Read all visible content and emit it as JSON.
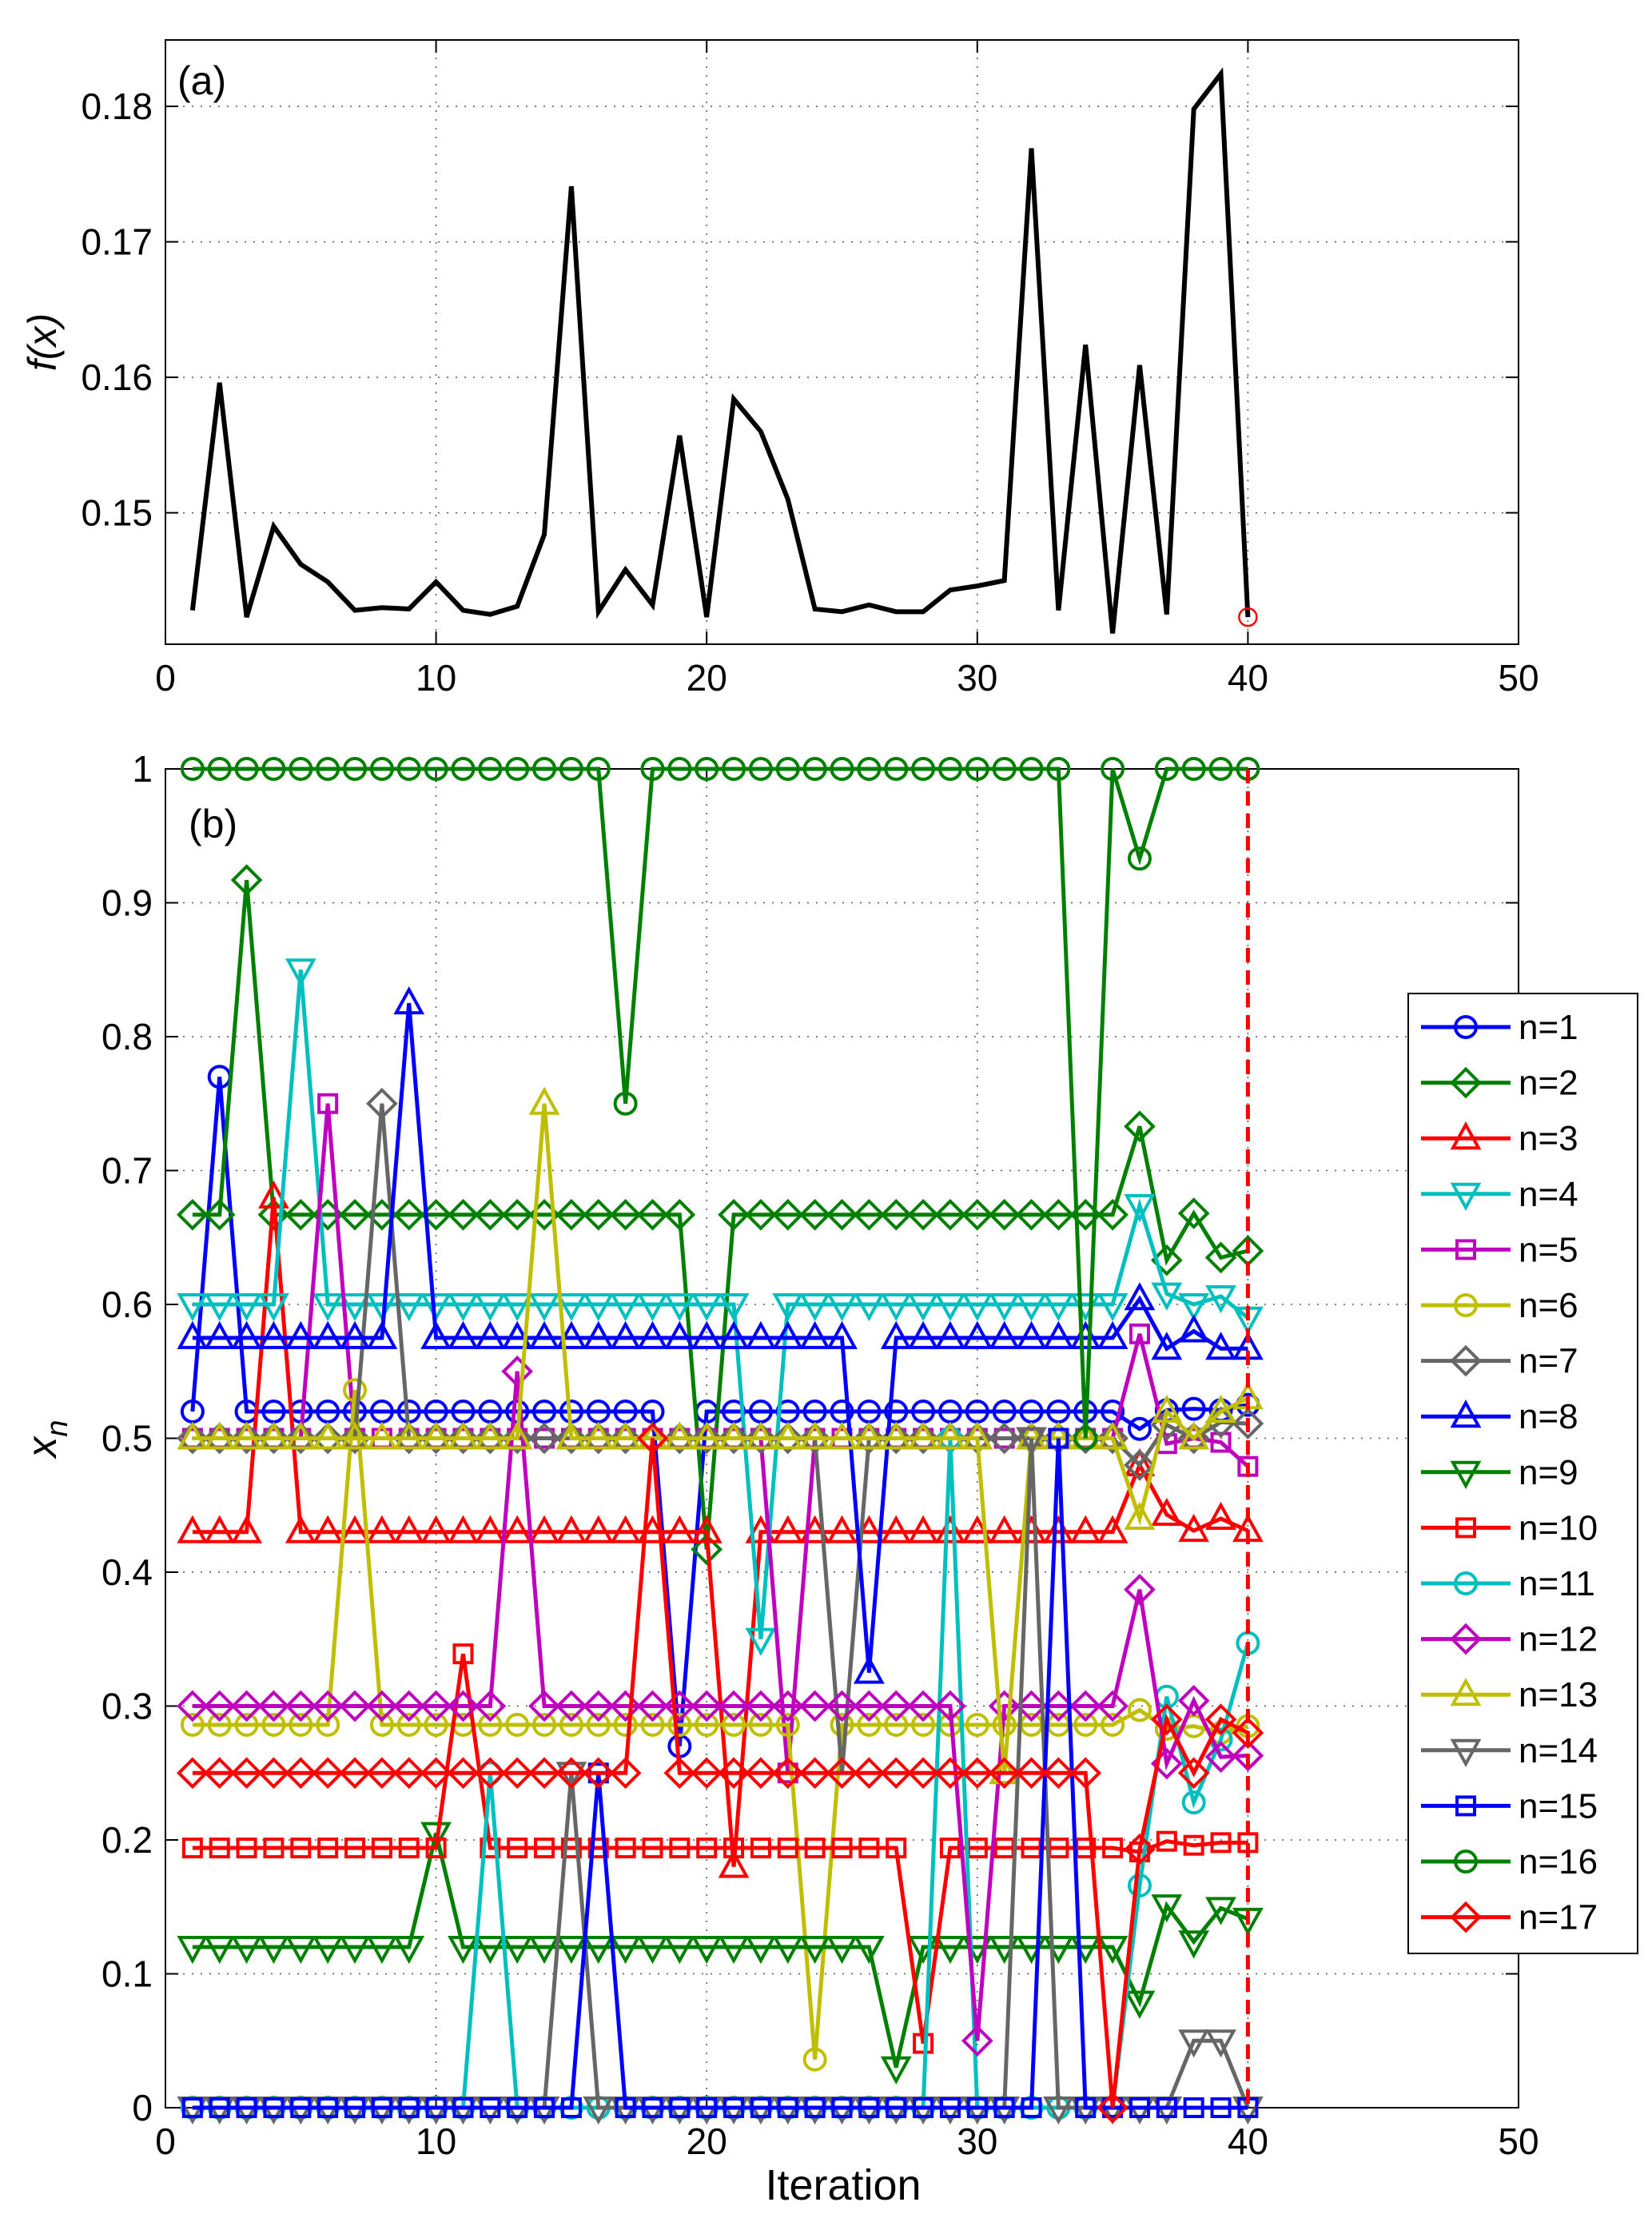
{
  "chart_data": [
    {
      "type": "line",
      "panel_label": "(a)",
      "title": "",
      "xlabel": "",
      "ylabel": "f(x)",
      "xlim": [
        0,
        50
      ],
      "ylim": [
        0.1403,
        0.1849
      ],
      "xticks": [
        0,
        10,
        20,
        30,
        40,
        50
      ],
      "yticks": [
        0.15,
        0.16,
        0.17,
        0.18
      ],
      "grid": true,
      "x": [
        1,
        2,
        3,
        4,
        5,
        6,
        7,
        8,
        9,
        10,
        11,
        12,
        13,
        14,
        15,
        16,
        17,
        18,
        19,
        20,
        21,
        22,
        23,
        24,
        25,
        26,
        27,
        28,
        29,
        30,
        31,
        32,
        33,
        34,
        35,
        36,
        37,
        38,
        39,
        40
      ],
      "series": [
        {
          "name": "f(x)",
          "color": "#000000",
          "values": [
            0.1428,
            0.1596,
            0.1423,
            0.149,
            0.1462,
            0.1449,
            0.1428,
            0.143,
            0.1429,
            0.1449,
            0.1428,
            0.1425,
            0.1431,
            0.1484,
            0.1741,
            0.1427,
            0.1458,
            0.1432,
            0.1557,
            0.1423,
            0.1584,
            0.156,
            0.151,
            0.1429,
            0.1427,
            0.1432,
            0.1427,
            0.1427,
            0.1443,
            0.1446,
            0.145,
            0.1769,
            0.1428,
            0.1624,
            0.1411,
            0.1609,
            0.1425,
            0.1798,
            0.1824,
            0.1423
          ]
        }
      ],
      "highlight_point": {
        "x": 40,
        "y": 0.1423,
        "color": "#ff0000",
        "marker": "circle"
      }
    },
    {
      "type": "line",
      "panel_label": "(b)",
      "title": "",
      "xlabel": "Iteration",
      "ylabel": "x",
      "ylabel_subscript": "n",
      "xlim": [
        0,
        50
      ],
      "ylim": [
        0,
        1
      ],
      "xticks": [
        0,
        10,
        20,
        30,
        40,
        50
      ],
      "yticks": [
        0,
        0.1,
        0.2,
        0.3,
        0.4,
        0.5,
        0.6,
        0.7,
        0.8,
        0.9,
        1
      ],
      "ytick_labels": [
        "0",
        "0.1",
        "0.2",
        "0.3",
        "0.4",
        "0.5",
        "0.6",
        "0.7",
        "0.8",
        "0.9",
        "1"
      ],
      "grid": true,
      "legend_position": "right",
      "vertical_marker": {
        "x": 40,
        "color": "#ff0000",
        "style": "dashed"
      },
      "x": [
        1,
        2,
        3,
        4,
        5,
        6,
        7,
        8,
        9,
        10,
        11,
        12,
        13,
        14,
        15,
        16,
        17,
        18,
        19,
        20,
        21,
        22,
        23,
        24,
        25,
        26,
        27,
        28,
        29,
        30,
        31,
        32,
        33,
        34,
        35,
        36,
        37,
        38,
        39,
        40
      ],
      "series": [
        {
          "name": "n=1",
          "color": "#0000ff",
          "marker": "circle",
          "values": [
            0.52,
            0.77,
            0.52,
            0.52,
            0.52,
            0.52,
            0.52,
            0.52,
            0.52,
            0.52,
            0.52,
            0.52,
            0.52,
            0.52,
            0.52,
            0.52,
            0.52,
            0.52,
            0.27,
            0.52,
            0.52,
            0.52,
            0.52,
            0.52,
            0.52,
            0.52,
            0.52,
            0.52,
            0.52,
            0.52,
            0.52,
            0.52,
            0.52,
            0.52,
            0.52,
            0.507,
            0.521,
            0.522,
            0.521,
            0.525
          ]
        },
        {
          "name": "n=2",
          "color": "#008000",
          "marker": "diamond",
          "values": [
            0.667,
            0.667,
            0.917,
            0.667,
            0.667,
            0.667,
            0.667,
            0.667,
            0.667,
            0.667,
            0.667,
            0.667,
            0.667,
            0.667,
            0.667,
            0.667,
            0.667,
            0.667,
            0.667,
            0.417,
            0.667,
            0.667,
            0.667,
            0.667,
            0.667,
            0.667,
            0.667,
            0.667,
            0.667,
            0.667,
            0.667,
            0.667,
            0.667,
            0.667,
            0.667,
            0.733,
            0.633,
            0.668,
            0.635,
            0.64
          ]
        },
        {
          "name": "n=3",
          "color": "#ff0000",
          "marker": "triangle-up",
          "values": [
            0.43,
            0.43,
            0.43,
            0.68,
            0.43,
            0.43,
            0.43,
            0.43,
            0.43,
            0.43,
            0.43,
            0.43,
            0.43,
            0.43,
            0.43,
            0.43,
            0.43,
            0.43,
            0.43,
            0.43,
            0.18,
            0.43,
            0.43,
            0.43,
            0.43,
            0.43,
            0.43,
            0.43,
            0.43,
            0.43,
            0.43,
            0.43,
            0.43,
            0.43,
            0.43,
            0.48,
            0.443,
            0.431,
            0.44,
            0.431
          ]
        },
        {
          "name": "n=4",
          "color": "#00bfbf",
          "marker": "triangle-down",
          "values": [
            0.6,
            0.6,
            0.6,
            0.6,
            0.85,
            0.6,
            0.6,
            0.6,
            0.6,
            0.6,
            0.6,
            0.6,
            0.6,
            0.6,
            0.6,
            0.6,
            0.6,
            0.6,
            0.6,
            0.6,
            0.6,
            0.35,
            0.6,
            0.6,
            0.6,
            0.6,
            0.6,
            0.6,
            0.6,
            0.6,
            0.6,
            0.6,
            0.6,
            0.6,
            0.6,
            0.674,
            0.608,
            0.6,
            0.606,
            0.59
          ]
        },
        {
          "name": "n=5",
          "color": "#bf00bf",
          "marker": "square",
          "values": [
            0.5,
            0.5,
            0.5,
            0.5,
            0.5,
            0.75,
            0.5,
            0.5,
            0.5,
            0.5,
            0.5,
            0.5,
            0.5,
            0.5,
            0.5,
            0.5,
            0.5,
            0.5,
            0.5,
            0.5,
            0.5,
            0.5,
            0.25,
            0.5,
            0.5,
            0.5,
            0.5,
            0.5,
            0.5,
            0.5,
            0.5,
            0.5,
            0.5,
            0.5,
            0.5,
            0.578,
            0.496,
            0.5,
            0.497,
            0.479
          ]
        },
        {
          "name": "n=6",
          "color": "#bfbf00",
          "marker": "circle",
          "values": [
            0.286,
            0.286,
            0.286,
            0.286,
            0.286,
            0.286,
            0.536,
            0.286,
            0.286,
            0.286,
            0.286,
            0.286,
            0.286,
            0.286,
            0.286,
            0.286,
            0.286,
            0.286,
            0.286,
            0.286,
            0.286,
            0.286,
            0.286,
            0.036,
            0.286,
            0.286,
            0.286,
            0.286,
            0.286,
            0.286,
            0.286,
            0.286,
            0.286,
            0.286,
            0.286,
            0.297,
            0.283,
            0.285,
            0.28,
            0.285
          ]
        },
        {
          "name": "n=7",
          "color": "#666666",
          "marker": "diamond",
          "values": [
            0.5,
            0.5,
            0.5,
            0.5,
            0.5,
            0.5,
            0.5,
            0.75,
            0.5,
            0.5,
            0.5,
            0.5,
            0.5,
            0.5,
            0.5,
            0.5,
            0.5,
            0.5,
            0.5,
            0.5,
            0.5,
            0.5,
            0.5,
            0.5,
            0.25,
            0.5,
            0.5,
            0.5,
            0.5,
            0.5,
            0.5,
            0.5,
            0.5,
            0.5,
            0.5,
            0.48,
            0.51,
            0.5,
            0.512,
            0.511
          ]
        },
        {
          "name": "n=8",
          "color": "#0000ff",
          "marker": "triangle-up",
          "values": [
            0.575,
            0.575,
            0.575,
            0.575,
            0.575,
            0.575,
            0.575,
            0.575,
            0.825,
            0.575,
            0.575,
            0.575,
            0.575,
            0.575,
            0.575,
            0.575,
            0.575,
            0.575,
            0.575,
            0.575,
            0.575,
            0.575,
            0.575,
            0.575,
            0.575,
            0.325,
            0.575,
            0.575,
            0.575,
            0.575,
            0.575,
            0.575,
            0.575,
            0.575,
            0.575,
            0.604,
            0.567,
            0.58,
            0.567,
            0.567
          ]
        },
        {
          "name": "n=9",
          "color": "#008000",
          "marker": "triangle-down",
          "values": [
            0.12,
            0.12,
            0.12,
            0.12,
            0.12,
            0.12,
            0.12,
            0.12,
            0.12,
            0.205,
            0.12,
            0.12,
            0.12,
            0.12,
            0.12,
            0.12,
            0.12,
            0.12,
            0.12,
            0.12,
            0.12,
            0.12,
            0.12,
            0.12,
            0.12,
            0.12,
            0.03,
            0.12,
            0.12,
            0.12,
            0.12,
            0.12,
            0.12,
            0.12,
            0.12,
            0.079,
            0.151,
            0.124,
            0.149,
            0.141
          ]
        },
        {
          "name": "n=10",
          "color": "#ff0000",
          "marker": "square",
          "values": [
            0.194,
            0.194,
            0.194,
            0.194,
            0.194,
            0.194,
            0.194,
            0.194,
            0.194,
            0.194,
            0.339,
            0.194,
            0.194,
            0.194,
            0.194,
            0.194,
            0.194,
            0.194,
            0.194,
            0.194,
            0.194,
            0.194,
            0.194,
            0.194,
            0.194,
            0.194,
            0.194,
            0.048,
            0.194,
            0.194,
            0.194,
            0.194,
            0.194,
            0.194,
            0.194,
            0.191,
            0.199,
            0.196,
            0.198,
            0.198
          ]
        },
        {
          "name": "n=11",
          "color": "#00bfbf",
          "marker": "circle",
          "values": [
            0,
            0,
            0,
            0,
            0,
            0,
            0,
            0,
            0,
            0,
            0,
            0.25,
            0,
            0,
            0,
            0,
            0,
            0,
            0,
            0,
            0,
            0,
            0,
            0,
            0,
            0,
            0,
            0,
            0.5,
            0,
            0,
            0,
            0,
            0,
            0,
            0.166,
            0.307,
            0.228,
            0.275,
            0.347
          ]
        },
        {
          "name": "n=12",
          "color": "#bf00bf",
          "marker": "diamond",
          "values": [
            0.3,
            0.3,
            0.3,
            0.3,
            0.3,
            0.3,
            0.3,
            0.3,
            0.3,
            0.3,
            0.3,
            0.3,
            0.55,
            0.3,
            0.3,
            0.3,
            0.3,
            0.3,
            0.3,
            0.3,
            0.3,
            0.3,
            0.3,
            0.3,
            0.3,
            0.3,
            0.3,
            0.3,
            0.3,
            0.05,
            0.3,
            0.3,
            0.3,
            0.3,
            0.3,
            0.387,
            0.257,
            0.304,
            0.262,
            0.263
          ]
        },
        {
          "name": "n=13",
          "color": "#bfbf00",
          "marker": "triangle-up",
          "values": [
            0.5,
            0.5,
            0.5,
            0.5,
            0.5,
            0.5,
            0.5,
            0.5,
            0.5,
            0.5,
            0.5,
            0.5,
            0.5,
            0.75,
            0.5,
            0.5,
            0.5,
            0.5,
            0.5,
            0.5,
            0.5,
            0.5,
            0.5,
            0.5,
            0.5,
            0.5,
            0.5,
            0.5,
            0.5,
            0.5,
            0.25,
            0.5,
            0.5,
            0.5,
            0.5,
            0.44,
            0.52,
            0.5,
            0.52,
            0.53
          ]
        },
        {
          "name": "n=14",
          "color": "#666666",
          "marker": "triangle-down",
          "values": [
            0,
            0,
            0,
            0,
            0,
            0,
            0,
            0,
            0,
            0,
            0,
            0,
            0,
            0,
            0.25,
            0,
            0,
            0,
            0,
            0,
            0,
            0,
            0,
            0,
            0,
            0,
            0,
            0,
            0,
            0,
            0,
            0.5,
            0,
            0,
            0,
            0,
            0,
            0.05,
            0.05,
            0
          ]
        },
        {
          "name": "n=15",
          "color": "#0000ff",
          "marker": "square",
          "values": [
            0,
            0,
            0,
            0,
            0,
            0,
            0,
            0,
            0,
            0,
            0,
            0,
            0,
            0,
            0,
            0.25,
            0,
            0,
            0,
            0,
            0,
            0,
            0,
            0,
            0,
            0,
            0,
            0,
            0,
            0,
            0,
            0,
            0.5,
            0,
            0,
            0,
            0,
            0,
            0,
            0
          ]
        },
        {
          "name": "n=16",
          "color": "#008000",
          "marker": "circle",
          "values": [
            1,
            1,
            1,
            1,
            1,
            1,
            1,
            1,
            1,
            1,
            1,
            1,
            1,
            1,
            1,
            1,
            0.75,
            1,
            1,
            1,
            1,
            1,
            1,
            1,
            1,
            1,
            1,
            1,
            1,
            1,
            1,
            1,
            1,
            0.5,
            1,
            0.933,
            1,
            1,
            1,
            1
          ]
        },
        {
          "name": "n=17",
          "color": "#ff0000",
          "marker": "diamond",
          "values": [
            0.25,
            0.25,
            0.25,
            0.25,
            0.25,
            0.25,
            0.25,
            0.25,
            0.25,
            0.25,
            0.25,
            0.25,
            0.25,
            0.25,
            0.25,
            0.25,
            0.25,
            0.5,
            0.25,
            0.25,
            0.25,
            0.25,
            0.25,
            0.25,
            0.25,
            0.25,
            0.25,
            0.25,
            0.25,
            0.25,
            0.25,
            0.25,
            0.25,
            0.25,
            0,
            0.193,
            0.29,
            0.25,
            0.29,
            0.28
          ]
        }
      ]
    }
  ]
}
